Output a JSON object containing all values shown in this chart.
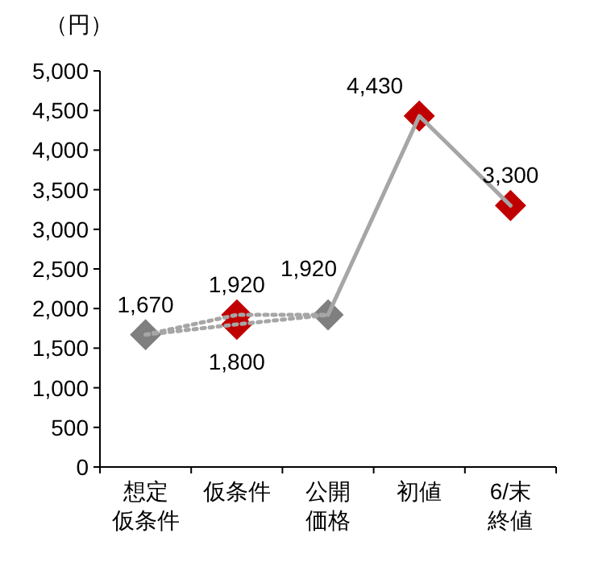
{
  "chart_data": {
    "type": "line",
    "ylabel": "（円）",
    "categories": [
      "想定仮条件",
      "仮条件",
      "公開価格",
      "初値",
      "6/末終値"
    ],
    "ylim": [
      0,
      5000
    ],
    "yticks": [
      {
        "value": 0,
        "label": "0"
      },
      {
        "value": 500,
        "label": "500"
      },
      {
        "value": 1000,
        "label": "1,000"
      },
      {
        "value": 1500,
        "label": "1,500"
      },
      {
        "value": 2000,
        "label": "2,000"
      },
      {
        "value": 2500,
        "label": "2,500"
      },
      {
        "value": 3000,
        "label": "3,000"
      },
      {
        "value": 3500,
        "label": "3,500"
      },
      {
        "value": 4000,
        "label": "4,000"
      },
      {
        "value": 4500,
        "label": "4,500"
      },
      {
        "value": 5000,
        "label": "5,000"
      }
    ],
    "grid": false,
    "series": [
      {
        "type": "line",
        "color": "#a6a6a6",
        "line_style": "dotted",
        "values": [
          1670,
          1800,
          1920,
          null,
          null
        ]
      },
      {
        "type": "line",
        "color": "#a6a6a6",
        "line_style": "dotted",
        "values": [
          1670,
          1920,
          1920,
          null,
          null
        ]
      },
      {
        "type": "line",
        "color": "#a6a6a6",
        "line_style": "solid",
        "values": [
          null,
          null,
          1920,
          4430,
          3300
        ]
      },
      {
        "type": "scatter",
        "marker": "diamond",
        "colors": [
          "#7f7f7f",
          "#c00000",
          null,
          null,
          null
        ],
        "values": [
          1670,
          1800,
          null,
          null,
          null
        ],
        "value_labels": [
          "1,670",
          "1,800",
          null,
          null,
          null
        ]
      },
      {
        "type": "scatter",
        "marker": "diamond",
        "colors": [
          null,
          "#c00000",
          "#7f7f7f",
          "#c00000",
          "#c00000"
        ],
        "values": [
          null,
          1920,
          1920,
          4430,
          3300
        ],
        "value_labels": [
          null,
          "1,920",
          "1,920",
          "4,430",
          "3,300"
        ]
      }
    ]
  }
}
